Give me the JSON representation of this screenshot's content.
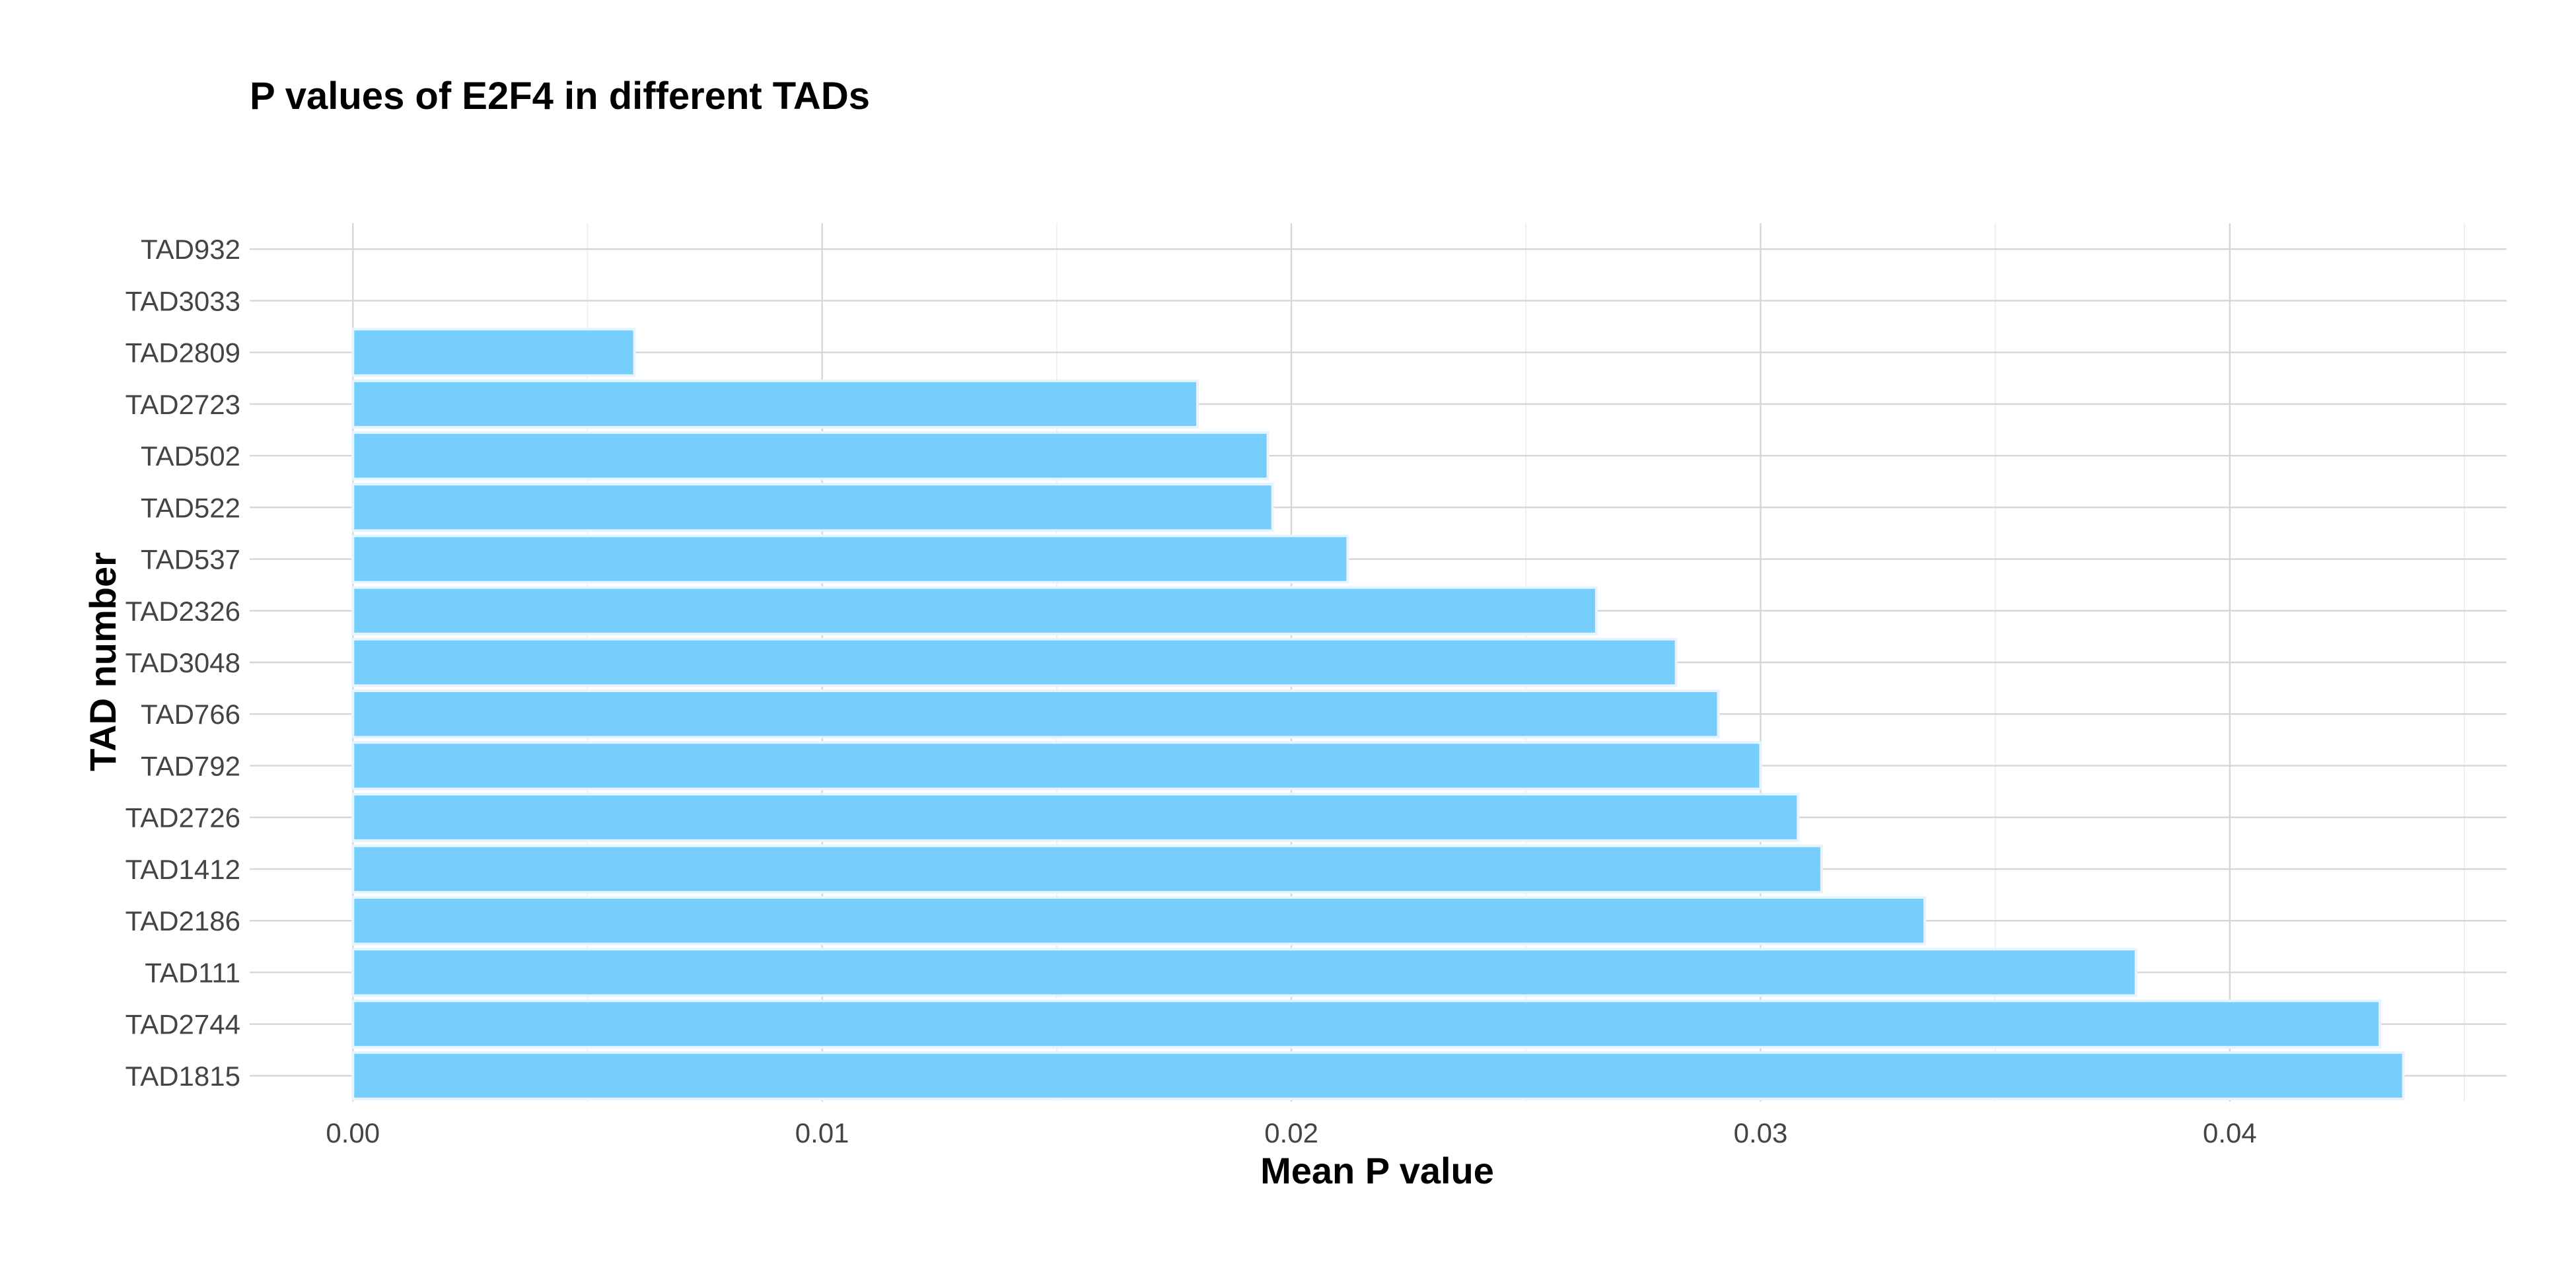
{
  "chart_data": {
    "type": "bar",
    "orientation": "horizontal",
    "title": "P values of E2F4 in different TADs",
    "xlabel": "Mean P value",
    "ylabel": "TAD number",
    "categories": [
      "TAD932",
      "TAD3033",
      "TAD2809",
      "TAD2723",
      "TAD502",
      "TAD522",
      "TAD537",
      "TAD2326",
      "TAD3048",
      "TAD766",
      "TAD792",
      "TAD2726",
      "TAD1412",
      "TAD2186",
      "TAD111",
      "TAD2744",
      "TAD1815"
    ],
    "values": [
      0.0,
      0.0,
      0.006,
      0.018,
      0.0195,
      0.0196,
      0.0212,
      0.0265,
      0.0282,
      0.0291,
      0.03,
      0.0308,
      0.0313,
      0.0335,
      0.038,
      0.0432,
      0.0437
    ],
    "x_ticks": [
      0.0,
      0.01,
      0.02,
      0.03,
      0.04
    ],
    "x_tick_labels": [
      "0.00",
      "0.01",
      "0.02",
      "0.03",
      "0.04"
    ],
    "xlim": [
      -0.0022,
      0.0459
    ],
    "grid": true,
    "legend": "none",
    "bar_color": "#76CEFC",
    "bar_outline_color": "#E6F4FF"
  }
}
